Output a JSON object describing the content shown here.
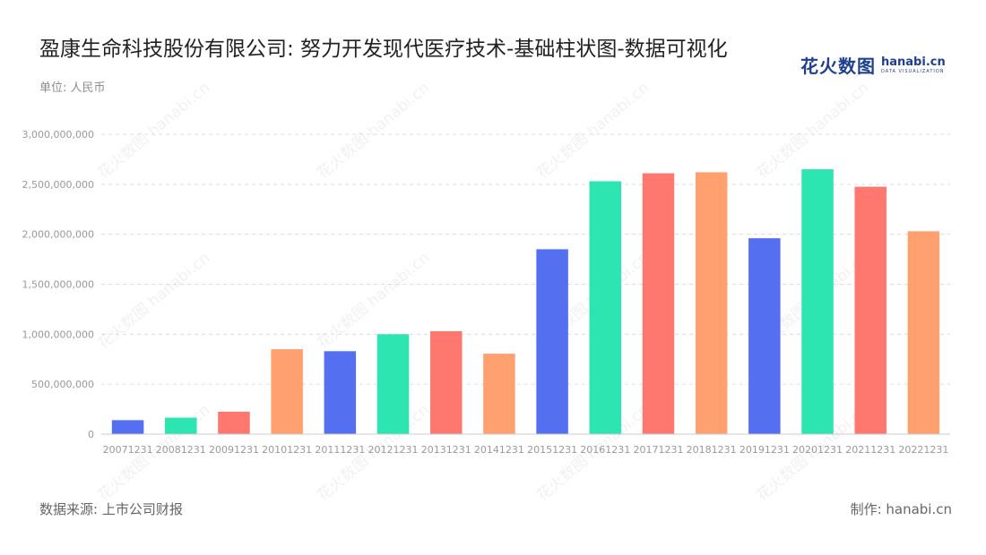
{
  "title": "盈康生命科技股份有限公司: 努力开发现代医疗技术-基础柱状图-数据可视化",
  "unit": "单位: 人民币",
  "logo": {
    "cn": "花火数图",
    "en": "hanabi.cn",
    "sub": "DATA VISUALIZATION"
  },
  "watermark_text": "花火数图 hanabi.cn",
  "source": "数据来源: 上市公司财报",
  "maker": "制作: hanabi.cn",
  "chart_data": {
    "type": "bar",
    "title": "盈康生命科技股份有限公司: 努力开发现代医疗技术-基础柱状图-数据可视化",
    "xlabel": "",
    "ylabel": "单位: 人民币",
    "categories": [
      "20071231",
      "20081231",
      "20091231",
      "20101231",
      "20111231",
      "20121231",
      "20131231",
      "20141231",
      "20151231",
      "20161231",
      "20171231",
      "20181231",
      "20191231",
      "20201231",
      "20211231",
      "20221231"
    ],
    "values": [
      140000000,
      165000000,
      225000000,
      850000000,
      830000000,
      1000000000,
      1030000000,
      805000000,
      1850000000,
      2530000000,
      2610000000,
      2620000000,
      1960000000,
      2650000000,
      2475000000,
      2030000000
    ],
    "bar_colors": [
      "#5470f0",
      "#2de5b0",
      "#ff7870",
      "#ffa070",
      "#5470f0",
      "#2de5b0",
      "#ff7870",
      "#ffa070",
      "#5470f0",
      "#2de5b0",
      "#ff7870",
      "#ffa070",
      "#5470f0",
      "#2de5b0",
      "#ff7870",
      "#ffa070"
    ],
    "yticks": [
      0,
      500000000,
      1000000000,
      1500000000,
      2000000000,
      2500000000,
      3000000000
    ],
    "ytick_labels": [
      "0",
      "500,000,000",
      "1,000,000,000",
      "1,500,000,000",
      "2,000,000,000",
      "2,500,000,000",
      "3,000,000,000"
    ],
    "ylim": [
      0,
      3000000000
    ],
    "grid": true,
    "legend": "none"
  }
}
